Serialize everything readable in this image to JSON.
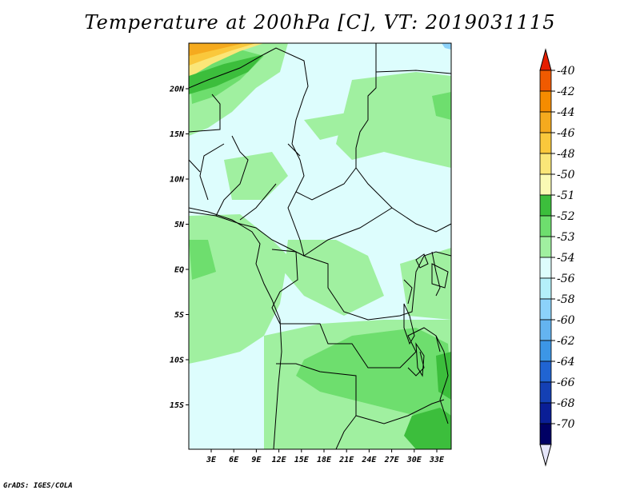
{
  "title": "Temperature at 200hPa [C], VT: 2019031115",
  "credit": "GrADS: IGES/COLA",
  "map": {
    "lat_ticks": [
      "20N",
      "15N",
      "10N",
      "5N",
      "EQ",
      "5S",
      "10S",
      "15S"
    ],
    "lon_ticks": [
      "3E",
      "6E",
      "9E",
      "12E",
      "15E",
      "18E",
      "21E",
      "24E",
      "27E",
      "30E",
      "33E"
    ]
  },
  "colorbar": {
    "labels": [
      "-40",
      "-42",
      "-44",
      "-46",
      "-48",
      "-50",
      "-51",
      "-52",
      "-53",
      "-54",
      "-56",
      "-58",
      "-60",
      "-62",
      "-64",
      "-66",
      "-68",
      "-70"
    ],
    "colors": [
      "#e61e00",
      "#f05a00",
      "#f58c00",
      "#f5aa1e",
      "#fac83c",
      "#fae678",
      "#fafab4",
      "#3cbe3c",
      "#6ede6e",
      "#a0f0a0",
      "#ddfdfd",
      "#b4f0fa",
      "#8cd2fa",
      "#64b4f0",
      "#3c96e6",
      "#2064d2",
      "#1440b4",
      "#0a1e96",
      "#000064",
      "#e6e6fa"
    ]
  }
}
